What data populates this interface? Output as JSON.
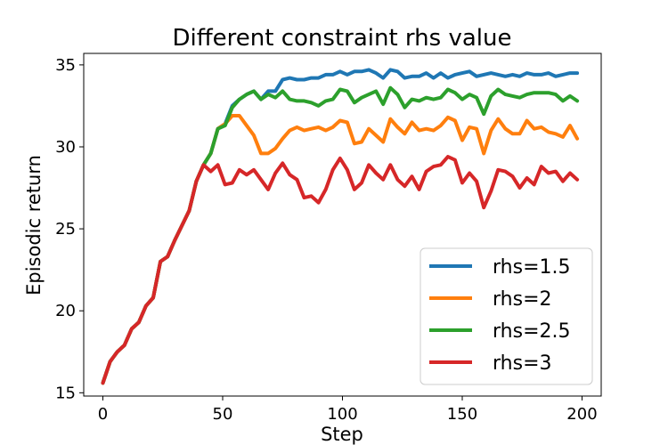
{
  "chart_data": {
    "type": "line",
    "title": "Different constraint rhs value",
    "xlabel": "Step",
    "ylabel": "Episodic return",
    "xlim": [
      -8,
      208
    ],
    "ylim": [
      14.8,
      35.7
    ],
    "xticks": [
      0,
      50,
      100,
      150,
      200
    ],
    "yticks": [
      15,
      20,
      25,
      30,
      35
    ],
    "grid": false,
    "legend_position": "bottom-right",
    "x": [
      0,
      3,
      6,
      9,
      12,
      15,
      18,
      21,
      24,
      27,
      30,
      33,
      36,
      39,
      42,
      45,
      48,
      51,
      54,
      57,
      60,
      63,
      66,
      69,
      72,
      75,
      78,
      81,
      84,
      87,
      90,
      93,
      96,
      99,
      102,
      105,
      108,
      111,
      114,
      117,
      120,
      123,
      126,
      129,
      132,
      135,
      138,
      141,
      144,
      147,
      150,
      153,
      156,
      159,
      162,
      165,
      168,
      171,
      174,
      177,
      180,
      183,
      186,
      189,
      192,
      195,
      198
    ],
    "series": [
      {
        "name": "rhs=1.5",
        "color": "#1f77b4",
        "values": [
          15.6,
          16.9,
          17.5,
          17.9,
          18.9,
          19.3,
          20.3,
          20.8,
          23.0,
          23.3,
          24.3,
          25.2,
          26.1,
          27.9,
          28.9,
          29.6,
          31.1,
          31.4,
          32.5,
          32.9,
          33.2,
          33.4,
          32.9,
          33.4,
          33.4,
          34.1,
          34.2,
          34.1,
          34.1,
          34.2,
          34.2,
          34.4,
          34.4,
          34.6,
          34.4,
          34.6,
          34.6,
          34.7,
          34.5,
          34.2,
          34.7,
          34.6,
          34.2,
          34.3,
          34.3,
          34.5,
          34.2,
          34.5,
          34.2,
          34.4,
          34.5,
          34.6,
          34.3,
          34.4,
          34.5,
          34.4,
          34.3,
          34.4,
          34.3,
          34.5,
          34.4,
          34.4,
          34.5,
          34.3,
          34.4,
          34.5,
          34.5
        ]
      },
      {
        "name": "rhs=2",
        "color": "#ff7f0e",
        "values": [
          15.6,
          16.9,
          17.5,
          17.9,
          18.9,
          19.3,
          20.3,
          20.8,
          23.0,
          23.3,
          24.3,
          25.2,
          26.1,
          27.9,
          28.9,
          29.6,
          31.1,
          31.4,
          31.9,
          31.9,
          31.3,
          30.7,
          29.6,
          29.6,
          29.9,
          30.5,
          31.0,
          31.2,
          31.0,
          31.1,
          31.2,
          31.0,
          31.2,
          31.6,
          31.5,
          30.2,
          30.3,
          31.1,
          30.7,
          30.3,
          31.7,
          31.2,
          30.8,
          31.5,
          31.0,
          31.1,
          31.0,
          31.3,
          31.8,
          31.6,
          30.4,
          31.2,
          31.1,
          29.6,
          31.0,
          31.7,
          31.1,
          30.8,
          30.8,
          31.6,
          31.1,
          31.2,
          30.9,
          30.8,
          30.6,
          31.3,
          30.5
        ]
      },
      {
        "name": "rhs=2.5",
        "color": "#2ca02c",
        "values": [
          15.6,
          16.9,
          17.5,
          17.9,
          18.9,
          19.3,
          20.3,
          20.8,
          23.0,
          23.3,
          24.3,
          25.2,
          26.1,
          27.9,
          28.9,
          29.6,
          31.1,
          31.3,
          32.4,
          32.9,
          33.2,
          33.4,
          32.9,
          33.2,
          33.0,
          33.4,
          32.9,
          32.8,
          32.8,
          32.7,
          32.5,
          32.8,
          32.9,
          33.5,
          33.4,
          32.7,
          33.0,
          33.2,
          33.4,
          32.6,
          33.6,
          33.2,
          32.4,
          32.9,
          32.8,
          33.0,
          32.9,
          33.0,
          33.5,
          33.3,
          32.9,
          33.2,
          33.0,
          32.0,
          33.1,
          33.5,
          33.2,
          33.1,
          33.0,
          33.2,
          33.3,
          33.3,
          33.3,
          33.2,
          32.8,
          33.1,
          32.8
        ]
      },
      {
        "name": "rhs=3",
        "color": "#d62728",
        "values": [
          15.6,
          16.9,
          17.5,
          17.9,
          18.9,
          19.3,
          20.3,
          20.8,
          23.0,
          23.3,
          24.3,
          25.2,
          26.1,
          27.9,
          28.9,
          28.5,
          28.9,
          27.7,
          27.8,
          28.6,
          28.3,
          28.6,
          28.0,
          27.4,
          28.4,
          29.0,
          28.3,
          28.0,
          26.9,
          27.0,
          26.6,
          27.4,
          28.6,
          29.3,
          28.6,
          27.4,
          27.8,
          28.9,
          28.4,
          28.0,
          28.9,
          28.0,
          27.6,
          28.2,
          27.4,
          28.5,
          28.8,
          28.9,
          29.4,
          29.2,
          27.8,
          28.4,
          27.9,
          26.3,
          27.3,
          28.6,
          28.5,
          28.2,
          27.5,
          28.1,
          27.7,
          28.8,
          28.4,
          28.5,
          27.9,
          28.4,
          28.0
        ]
      }
    ]
  }
}
